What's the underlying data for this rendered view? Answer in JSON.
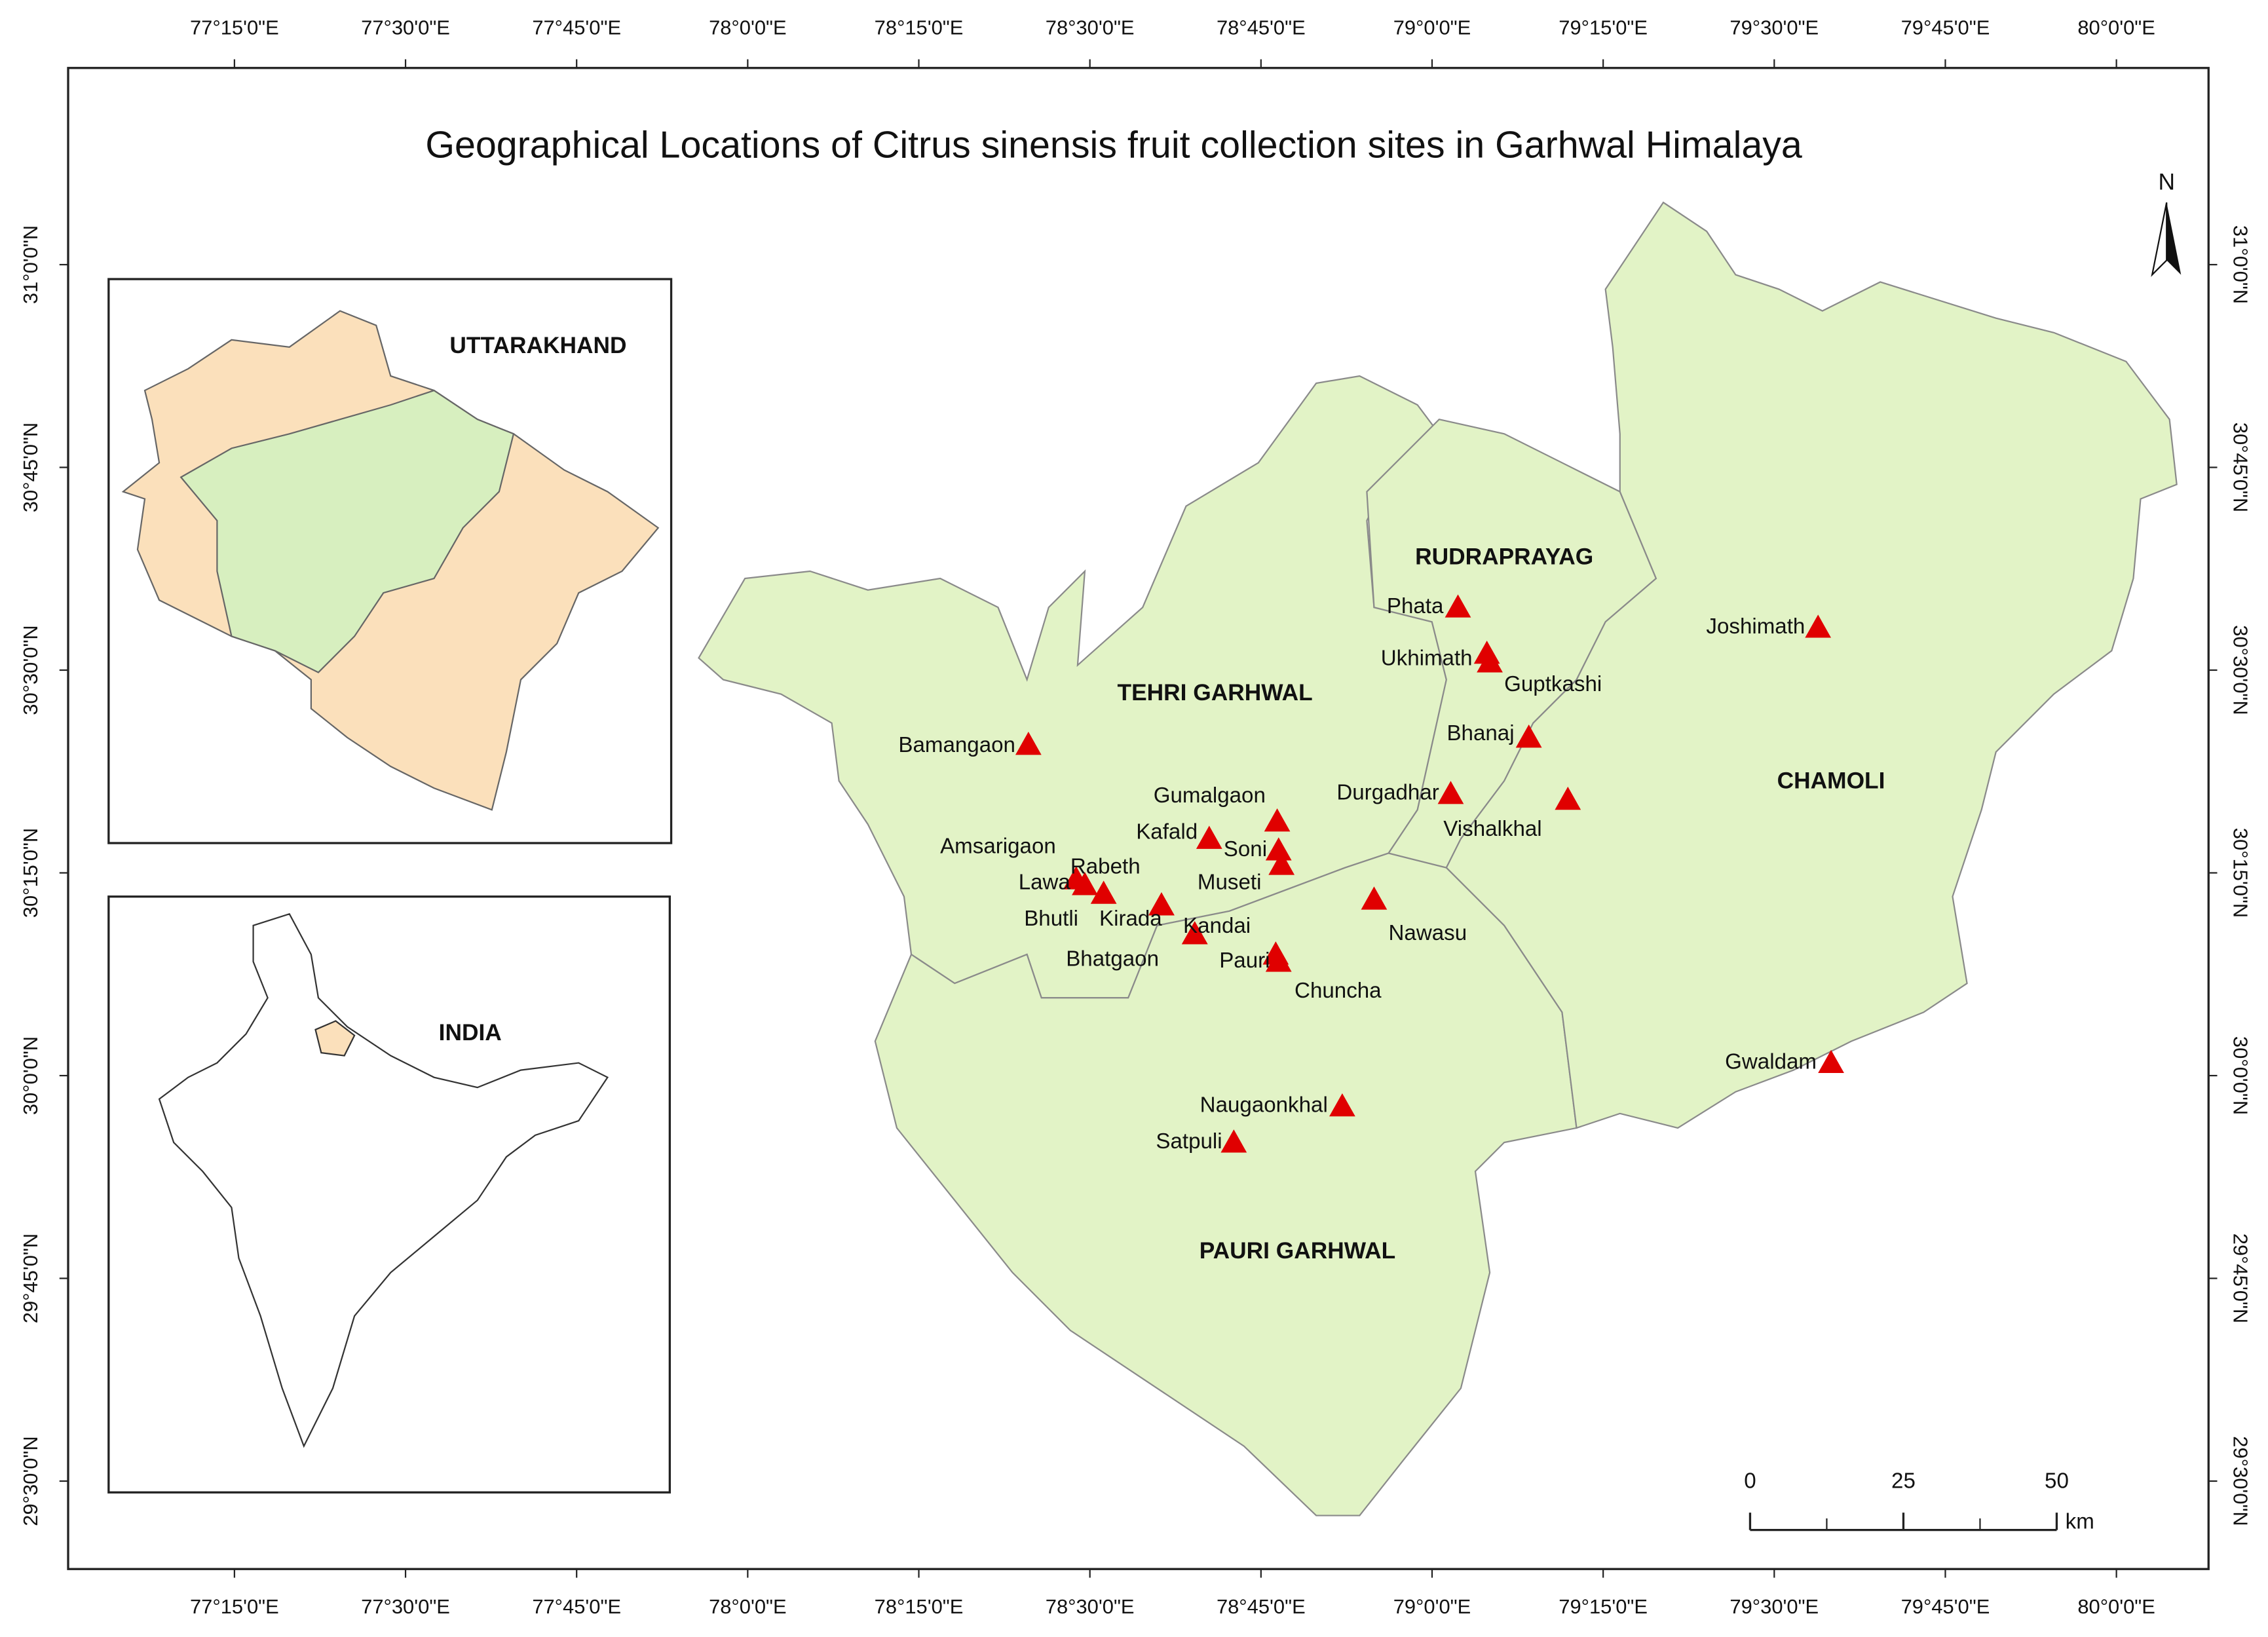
{
  "title": "Geographical Locations of Citrus sinensis fruit collection sites in Garhwal Himalaya",
  "lon_ticks": [
    "77°15'0\"E",
    "77°30'0\"E",
    "77°45'0\"E",
    "78°0'0\"E",
    "78°15'0\"E",
    "78°30'0\"E",
    "78°45'0\"E",
    "79°0'0\"E",
    "79°15'0\"E",
    "79°30'0\"E",
    "79°45'0\"E",
    "80°0'0\"E"
  ],
  "lat_ticks": [
    "31°0'0\"N",
    "30°45'0\"N",
    "30°30'0\"N",
    "30°15'0\"N",
    "30°0'0\"N",
    "29°45'0\"N",
    "29°30'0\"N"
  ],
  "districts": [
    "RUDRAPRAYAG",
    "TEHRI GARHWAL",
    "CHAMOLI",
    "PAURI GARHWAL"
  ],
  "sites": [
    "Phata",
    "Ukhimath",
    "Guptkashi",
    "Joshimath",
    "Bhanaj",
    "Durgadhar",
    "Vishalkhal",
    "Bamangaon",
    "Gumalgaon",
    "Kafald",
    "Soni",
    "Museti",
    "Amsarigaon",
    "Lawa",
    "Rabeth",
    "Bhutli",
    "Kirada",
    "Kandai",
    "Nawasu",
    "Bhatgaon",
    "Pauri",
    "Chuncha",
    "Naugaonkhal",
    "Satpuli",
    "Gwaldam"
  ],
  "insets": {
    "state": "UTTARAKHAND",
    "country": "INDIA"
  },
  "north": "N",
  "scale_bar": {
    "ticks": [
      0,
      25,
      50
    ],
    "unit": "km"
  }
}
